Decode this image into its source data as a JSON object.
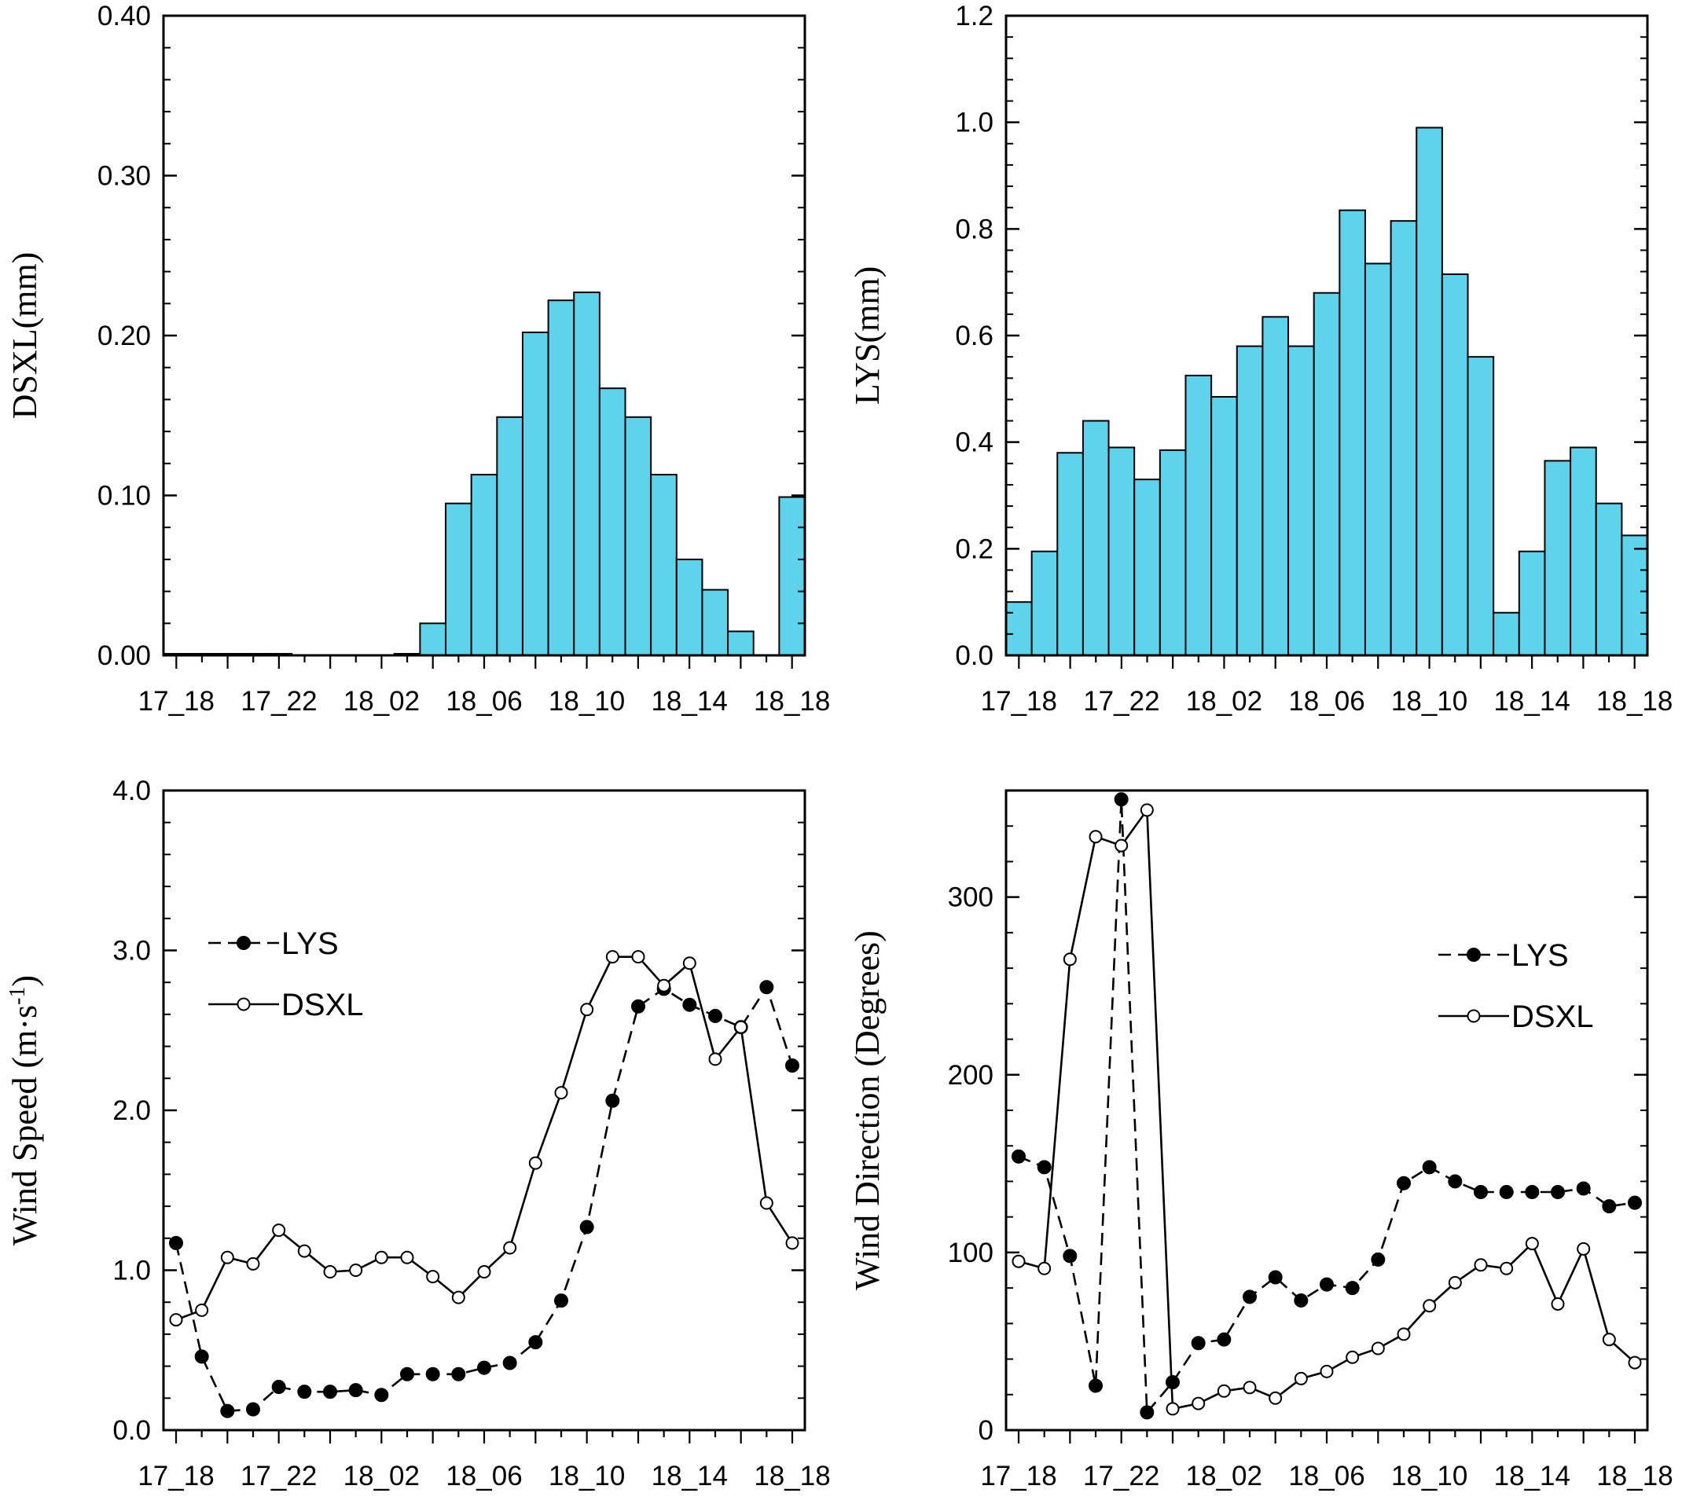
{
  "chart_data": [
    {
      "type": "bar",
      "ylabel": "DSXL(mm)",
      "ylim": [
        0,
        0.4
      ],
      "yticks": [
        "0.00",
        "0.10",
        "0.20",
        "0.30",
        "0.40"
      ],
      "xtick_labels": [
        "17_18",
        "17_22",
        "18_02",
        "18_06",
        "18_10",
        "18_14",
        "18_18"
      ],
      "bar_color": "#5dd3ec",
      "values": [
        0.001,
        0.001,
        0.001,
        0.001,
        0.001,
        0.0,
        0.0,
        0.0,
        0.0,
        0.001,
        0.02,
        0.095,
        0.113,
        0.149,
        0.202,
        0.222,
        0.227,
        0.167,
        0.149,
        0.113,
        0.06,
        0.041,
        0.015,
        0.0,
        0.099
      ]
    },
    {
      "type": "bar",
      "ylabel": "LYS(mm)",
      "ylim": [
        0,
        1.2
      ],
      "yticks": [
        "0.0",
        "0.2",
        "0.4",
        "0.6",
        "0.8",
        "1.0",
        "1.2"
      ],
      "xtick_labels": [
        "17_18",
        "17_22",
        "18_02",
        "18_06",
        "18_10",
        "18_14",
        "18_18"
      ],
      "bar_color": "#5dd3ec",
      "values": [
        0.1,
        0.195,
        0.38,
        0.44,
        0.39,
        0.33,
        0.385,
        0.525,
        0.485,
        0.58,
        0.635,
        0.58,
        0.68,
        0.835,
        0.735,
        0.815,
        0.99,
        0.715,
        0.56,
        0.08,
        0.195,
        0.365,
        0.39,
        0.285,
        0.225
      ]
    },
    {
      "type": "line",
      "ylabel_text": "Wind Speed (m·s",
      "ylabel_sup": "-1",
      "ylabel_close": ")",
      "ylim": [
        0,
        4
      ],
      "yticks": [
        "0.0",
        "1.0",
        "2.0",
        "3.0",
        "4.0"
      ],
      "xtick_labels": [
        "17_18",
        "17_22",
        "18_02",
        "18_06",
        "18_10",
        "18_14",
        "18_18"
      ],
      "legend": {
        "placement": "upper-left"
      },
      "series": [
        {
          "name": "LYS",
          "style": "dashed-filled",
          "values": [
            1.17,
            0.46,
            0.12,
            0.13,
            0.27,
            0.24,
            0.24,
            0.25,
            0.22,
            0.35,
            0.35,
            0.35,
            0.39,
            0.42,
            0.55,
            0.81,
            1.27,
            2.06,
            2.65,
            2.76,
            2.66,
            2.59,
            2.52,
            2.77,
            2.28
          ]
        },
        {
          "name": "DSXL",
          "style": "solid-open",
          "values": [
            0.69,
            0.75,
            1.08,
            1.04,
            1.25,
            1.12,
            0.99,
            1.0,
            1.08,
            1.08,
            0.96,
            0.83,
            0.99,
            1.14,
            1.67,
            2.11,
            2.63,
            2.96,
            2.96,
            2.78,
            2.92,
            2.32,
            2.52,
            1.42,
            1.17
          ]
        }
      ]
    },
    {
      "type": "line",
      "ylabel": "Wind Direction (Degrees)",
      "ylim": [
        0,
        360
      ],
      "yticks": [
        "0",
        "100",
        "200",
        "300"
      ],
      "xtick_labels": [
        "17_18",
        "17_22",
        "18_02",
        "18_06",
        "18_10",
        "18_14",
        "18_18"
      ],
      "legend": {
        "placement": "upper-right"
      },
      "series": [
        {
          "name": "LYS",
          "style": "dashed-filled",
          "values": [
            154,
            148,
            98,
            25,
            355,
            10,
            27,
            49,
            51,
            75,
            86,
            73,
            82,
            80,
            96,
            139,
            148,
            140,
            134,
            134,
            134,
            134,
            136,
            126,
            128
          ]
        },
        {
          "name": "DSXL",
          "style": "solid-open",
          "values": [
            95,
            91,
            265,
            334,
            329,
            349,
            12,
            15,
            22,
            24,
            18,
            29,
            33,
            41,
            46,
            54,
            70,
            83,
            93,
            91,
            105,
            71,
            102,
            51,
            38
          ]
        }
      ]
    }
  ]
}
